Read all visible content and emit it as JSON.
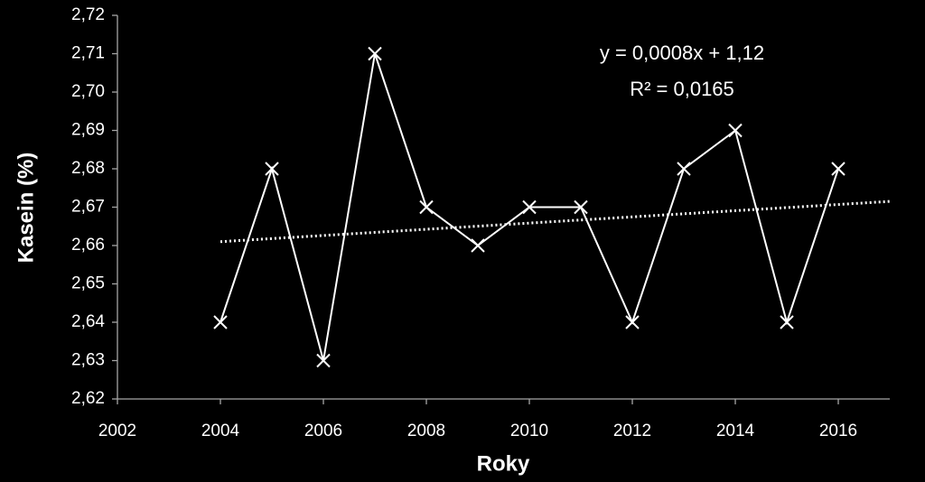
{
  "chart_data": {
    "type": "line",
    "y_label": "Kasein (%)",
    "x_label": "Roky",
    "annotations": [
      "y = 0,0008x + 1,12",
      "R² = 0,0165"
    ],
    "x": [
      2004,
      2005,
      2006,
      2007,
      2008,
      2009,
      2010,
      2011,
      2012,
      2013,
      2014,
      2015,
      2016
    ],
    "series": [
      {
        "color": "#ffffff",
        "marker": "x",
        "values": [
          2.64,
          2.68,
          2.63,
          2.71,
          2.67,
          2.66,
          2.67,
          2.67,
          2.64,
          2.68,
          2.69,
          2.64,
          2.68
        ]
      }
    ],
    "trendline": {
      "color": "#ffffff",
      "style": "dotted",
      "x": [
        2004,
        2017
      ],
      "values": [
        2.661,
        2.6715
      ]
    },
    "xlim": [
      2002,
      2017
    ],
    "xticks": [
      2002,
      2004,
      2006,
      2008,
      2010,
      2012,
      2014,
      2016
    ],
    "ylim": [
      2.62,
      2.72
    ],
    "yticks": [
      {
        "value": 2.62,
        "label": "2,62"
      },
      {
        "value": 2.63,
        "label": "2,63"
      },
      {
        "value": 2.64,
        "label": "2,64"
      },
      {
        "value": 2.65,
        "label": "2,65"
      },
      {
        "value": 2.66,
        "label": "2,66"
      },
      {
        "value": 2.67,
        "label": "2,67"
      },
      {
        "value": 2.68,
        "label": "2,68"
      },
      {
        "value": 2.69,
        "label": "2,69"
      },
      {
        "value": 2.7,
        "label": "2,70"
      },
      {
        "value": 2.71,
        "label": "2,71"
      },
      {
        "value": 2.72,
        "label": "2,72"
      }
    ],
    "grid": false
  }
}
